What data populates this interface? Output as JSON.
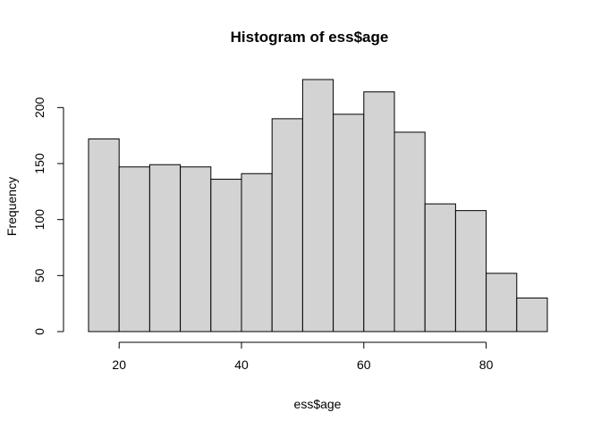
{
  "chart_data": {
    "type": "bar",
    "title": "Histogram of ess$age",
    "xlabel": "ess$age",
    "ylabel": "Frequency",
    "bins": [
      {
        "x0": 15,
        "x1": 20,
        "value": 172
      },
      {
        "x0": 20,
        "x1": 25,
        "value": 147
      },
      {
        "x0": 25,
        "x1": 30,
        "value": 149
      },
      {
        "x0": 30,
        "x1": 35,
        "value": 147
      },
      {
        "x0": 35,
        "x1": 40,
        "value": 136
      },
      {
        "x0": 40,
        "x1": 45,
        "value": 141
      },
      {
        "x0": 45,
        "x1": 50,
        "value": 190
      },
      {
        "x0": 50,
        "x1": 55,
        "value": 225
      },
      {
        "x0": 55,
        "x1": 60,
        "value": 194
      },
      {
        "x0": 60,
        "x1": 65,
        "value": 214
      },
      {
        "x0": 65,
        "x1": 70,
        "value": 178
      },
      {
        "x0": 70,
        "x1": 75,
        "value": 114
      },
      {
        "x0": 75,
        "x1": 80,
        "value": 108
      },
      {
        "x0": 80,
        "x1": 85,
        "value": 52
      },
      {
        "x0": 85,
        "x1": 90,
        "value": 30
      }
    ],
    "xlim": [
      15,
      90
    ],
    "ylim": [
      0,
      225
    ],
    "x_ticks": [
      20,
      40,
      60,
      80
    ],
    "x_tick_labels": [
      "20",
      "40",
      "60",
      "80"
    ],
    "y_ticks": [
      0,
      50,
      100,
      150,
      200
    ],
    "y_tick_labels": [
      "0",
      "50",
      "100",
      "150",
      "200"
    ],
    "bar_fill": "#d3d3d3",
    "bar_stroke": "#000000",
    "grid": false,
    "legend": "none"
  }
}
